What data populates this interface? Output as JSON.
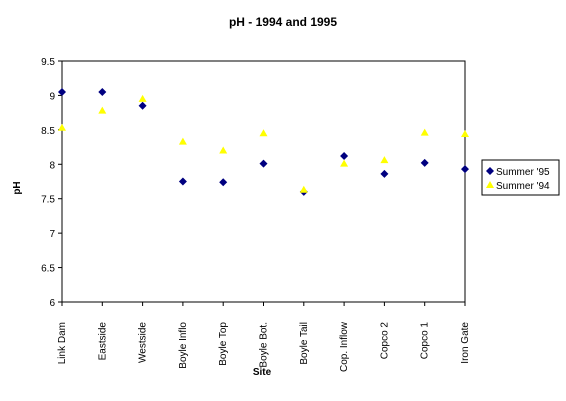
{
  "chart_data": {
    "type": "scatter",
    "title": "pH - 1994 and 1995",
    "xlabel": "Site",
    "ylabel": "pH",
    "ylim": [
      6,
      9.5
    ],
    "yticks": [
      "6",
      "6.5",
      "7",
      "7.5",
      "8",
      "8.5",
      "9",
      "9.5"
    ],
    "categories": [
      "Link Dam",
      "Eastside",
      "Westside",
      "Boyle Inflo",
      "Boyle Top",
      "Boyle Bot.",
      "Boyle Tail",
      "Cop. Inflow",
      "Copco 2",
      "Copco 1",
      "Iron Gate"
    ],
    "grid": false,
    "legend_position": "right",
    "series": [
      {
        "name": "Summer '95",
        "marker": "diamond",
        "color": "#000080",
        "values": [
          9.05,
          9.05,
          8.85,
          7.75,
          7.74,
          8.01,
          7.6,
          8.12,
          7.86,
          8.02,
          7.93
        ]
      },
      {
        "name": "Summer '94",
        "marker": "triangle",
        "color": "#FFFF00",
        "values": [
          8.53,
          8.78,
          8.95,
          8.33,
          8.2,
          8.45,
          7.63,
          8.01,
          8.06,
          8.46,
          8.44
        ]
      }
    ]
  }
}
